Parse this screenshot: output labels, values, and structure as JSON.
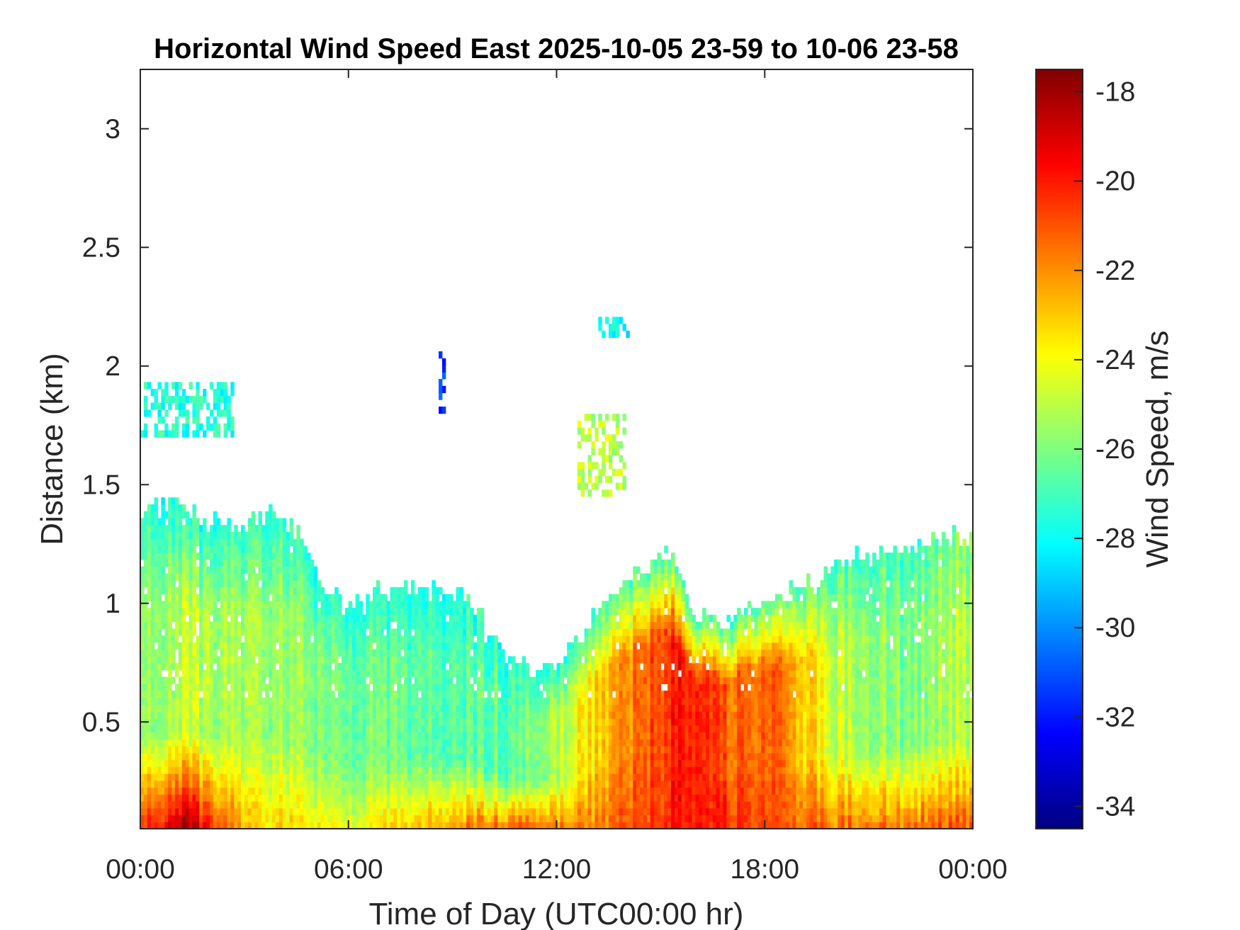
{
  "chart_data": {
    "type": "heatmap",
    "title": "Horizontal Wind Speed East 2025-10-05 23-59 to 10-06 23-58",
    "xlabel": "Time of Day (UTC00:00 hr)",
    "ylabel": "Distance (km)",
    "x_ticks": [
      "00:00",
      "06:00",
      "12:00",
      "18:00",
      "00:00"
    ],
    "xlim_hours": [
      0,
      24
    ],
    "y_ticks": [
      "0.5",
      "1",
      "1.5",
      "2",
      "2.5",
      "3"
    ],
    "ylim": [
      0.05,
      3.25
    ],
    "colorbar": {
      "label": "Wind Speed, m/s",
      "ticks": [
        "-18",
        "-20",
        "-22",
        "-24",
        "-26",
        "-28",
        "-30",
        "-32",
        "-34"
      ],
      "clim": [
        -34.5,
        -17.5
      ],
      "colormap": "jet"
    },
    "grid": false,
    "coverage_top_km": [
      {
        "hour": 0,
        "km": 1.38
      },
      {
        "hour": 1,
        "km": 1.42
      },
      {
        "hour": 2,
        "km": 1.35
      },
      {
        "hour": 3,
        "km": 1.32
      },
      {
        "hour": 3.8,
        "km": 1.38
      },
      {
        "hour": 4.6,
        "km": 1.3
      },
      {
        "hour": 5.3,
        "km": 1.08
      },
      {
        "hour": 6,
        "km": 1.0
      },
      {
        "hour": 6.8,
        "km": 1.05
      },
      {
        "hour": 7.5,
        "km": 1.06
      },
      {
        "hour": 8.5,
        "km": 1.06
      },
      {
        "hour": 9.5,
        "km": 1.02
      },
      {
        "hour": 10,
        "km": 0.9
      },
      {
        "hour": 10.6,
        "km": 0.78
      },
      {
        "hour": 11.2,
        "km": 0.72
      },
      {
        "hour": 12,
        "km": 0.75
      },
      {
        "hour": 12.8,
        "km": 0.88
      },
      {
        "hour": 13.6,
        "km": 1.05
      },
      {
        "hour": 14.5,
        "km": 1.15
      },
      {
        "hour": 15.3,
        "km": 1.22
      },
      {
        "hour": 16,
        "km": 0.95
      },
      {
        "hour": 16.8,
        "km": 0.92
      },
      {
        "hour": 17.5,
        "km": 0.98
      },
      {
        "hour": 18.2,
        "km": 1.02
      },
      {
        "hour": 19,
        "km": 1.08
      },
      {
        "hour": 20,
        "km": 1.15
      },
      {
        "hour": 21,
        "km": 1.22
      },
      {
        "hour": 22,
        "km": 1.22
      },
      {
        "hour": 23,
        "km": 1.28
      },
      {
        "hour": 24,
        "km": 1.28
      }
    ],
    "speed_samples_m_s": [
      {
        "hour": 0,
        "near_surface": -21,
        "mid_layer": -26,
        "upper": -27.5
      },
      {
        "hour": 1.3,
        "near_surface": -18,
        "mid_layer": -25,
        "upper": -27.5
      },
      {
        "hour": 3,
        "near_surface": -23,
        "mid_layer": -25.5,
        "upper": -27.5
      },
      {
        "hour": 6,
        "near_surface": -24,
        "mid_layer": -26,
        "upper": -27.5
      },
      {
        "hour": 9,
        "near_surface": -22,
        "mid_layer": -26.5,
        "upper": -27.5
      },
      {
        "hour": 11,
        "near_surface": -21,
        "mid_layer": -26.5,
        "upper": -27.5
      },
      {
        "hour": 13,
        "near_surface": -22,
        "mid_layer": -23.5,
        "upper": -27
      },
      {
        "hour": 15.5,
        "near_surface": -20,
        "mid_layer": -20,
        "upper": -27
      },
      {
        "hour": 17,
        "near_surface": -20,
        "mid_layer": -21,
        "upper": -27
      },
      {
        "hour": 18.5,
        "near_surface": -21,
        "mid_layer": -21.5,
        "upper": -26.5
      },
      {
        "hour": 20,
        "near_surface": -21.5,
        "mid_layer": -25,
        "upper": -27
      },
      {
        "hour": 22,
        "near_surface": -21.5,
        "mid_layer": -26,
        "upper": -27
      },
      {
        "hour": 24,
        "near_surface": -21,
        "mid_layer": -25,
        "upper": -26
      }
    ],
    "isolated_returns": [
      {
        "hour_start": 0,
        "hour_end": 2.7,
        "km_bottom": 1.7,
        "km_top": 1.92,
        "speed": -27.5
      },
      {
        "hour_start": 12.6,
        "hour_end": 14.0,
        "km_bottom": 1.45,
        "km_top": 1.78,
        "speed": -25
      },
      {
        "hour_start": 13.2,
        "hour_end": 14.1,
        "km_bottom": 2.12,
        "km_top": 2.2,
        "speed": -28
      },
      {
        "hour_start": 8.6,
        "hour_end": 8.7,
        "km_bottom": 1.8,
        "km_top": 2.08,
        "speed": -31.5
      }
    ]
  }
}
